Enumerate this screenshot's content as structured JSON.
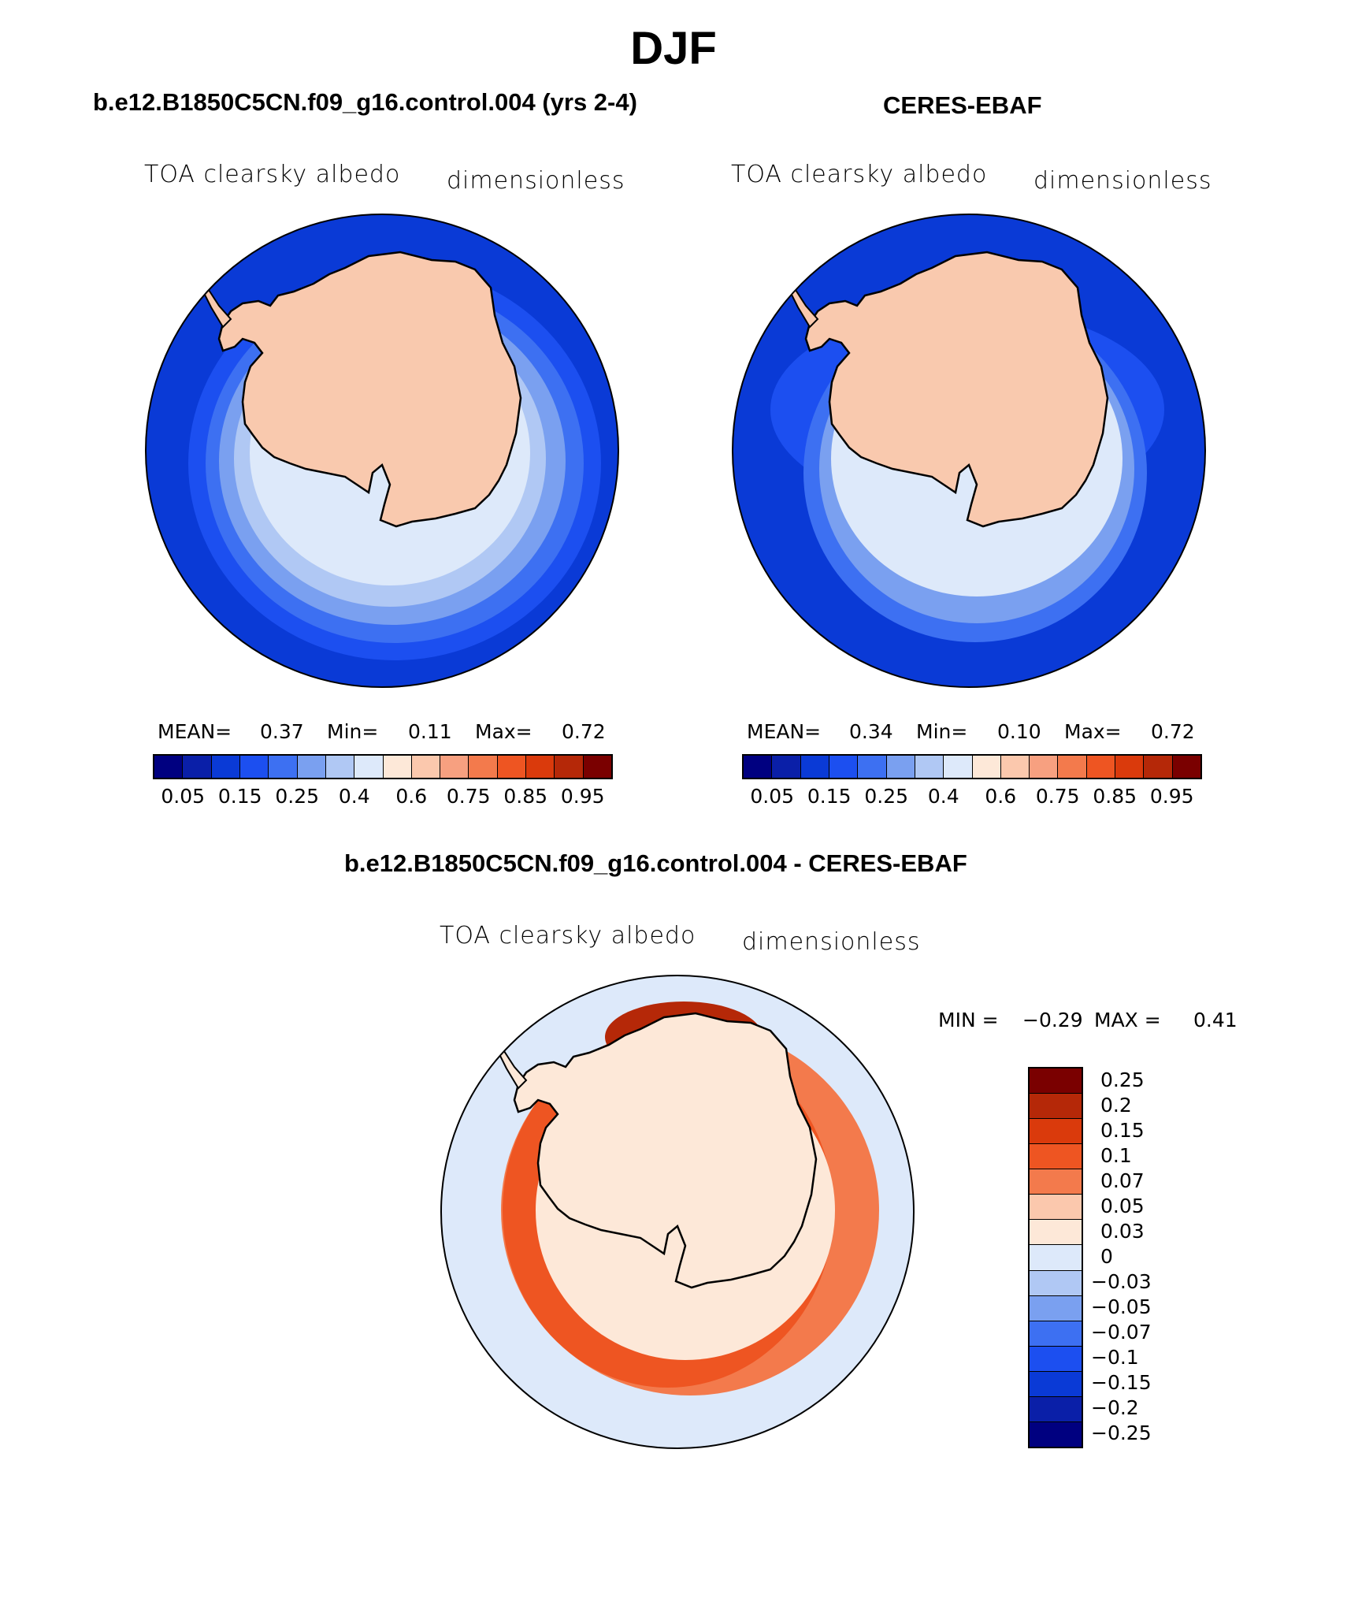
{
  "page": {
    "title": "DJF",
    "left_panel_title": "b.e12.B1850C5CN.f09_g16.control.004 (yrs 2-4)",
    "right_panel_title": "CERES-EBAF",
    "diff_panel_title": "b.e12.B1850C5CN.f09_g16.control.004 - CERES-EBAF"
  },
  "panels": {
    "model": {
      "variable": "TOA clearsky albedo",
      "units": "dimensionless",
      "mean_label": "MEAN=",
      "mean": "0.37",
      "min_label": "Min=",
      "min": "0.11",
      "max_label": "Max=",
      "max": "0.72"
    },
    "obs": {
      "variable": "TOA clearsky albedo",
      "units": "dimensionless",
      "mean_label": "MEAN=",
      "mean": "0.34",
      "min_label": "Min=",
      "min": "0.10",
      "max_label": "Max=",
      "max": "0.72"
    },
    "diff": {
      "variable": "TOA clearsky albedo",
      "units": "dimensionless",
      "min_label": "MIN =",
      "min": "−0.29",
      "max_label": "MAX =",
      "max": "0.41"
    }
  },
  "colorbar_abs": {
    "colors": [
      "#000080",
      "#0a1fa8",
      "#0a3ad6",
      "#1c4ff0",
      "#3d70f2",
      "#7aa0f0",
      "#b0c8f4",
      "#dde9fa",
      "#fde8d8",
      "#fbc8ad",
      "#f7a080",
      "#f37a4c",
      "#ee5522",
      "#da3a0c",
      "#b52808",
      "#7a0000"
    ],
    "tick_labels": [
      "0.05",
      "0.15",
      "0.25",
      "0.4",
      "0.6",
      "0.75",
      "0.85",
      "0.95"
    ]
  },
  "colorbar_diff": {
    "colors": [
      "#7a0000",
      "#b52808",
      "#da3a0c",
      "#ee5522",
      "#f37a4c",
      "#fbc8ad",
      "#fde8d8",
      "#dde9fa",
      "#b0c8f4",
      "#7aa0f0",
      "#3d70f2",
      "#1c4ff0",
      "#0a3ad6",
      "#0a1fa8",
      "#000080"
    ],
    "tick_labels": [
      "0.25",
      "0.2",
      "0.15",
      "0.1",
      "0.07",
      "0.05",
      "0.03",
      "0",
      "−0.03",
      "−0.05",
      "−0.07",
      "−0.1",
      "−0.15",
      "−0.2",
      "−0.25"
    ]
  },
  "map_colors": {
    "ocean_far": "#0a3ad6",
    "ring1": "#1c4ff0",
    "ring2": "#3d70f2",
    "ring3": "#7aa0f0",
    "ring4": "#b0c8f4",
    "ring5": "#dde9fa",
    "land": "#f9c9ae",
    "diff_bg": "#dde9fa",
    "diff_warm1": "#fde8d8",
    "diff_warm2": "#f37a4c",
    "diff_warm3": "#ee5522",
    "diff_warm4": "#b52808"
  }
}
